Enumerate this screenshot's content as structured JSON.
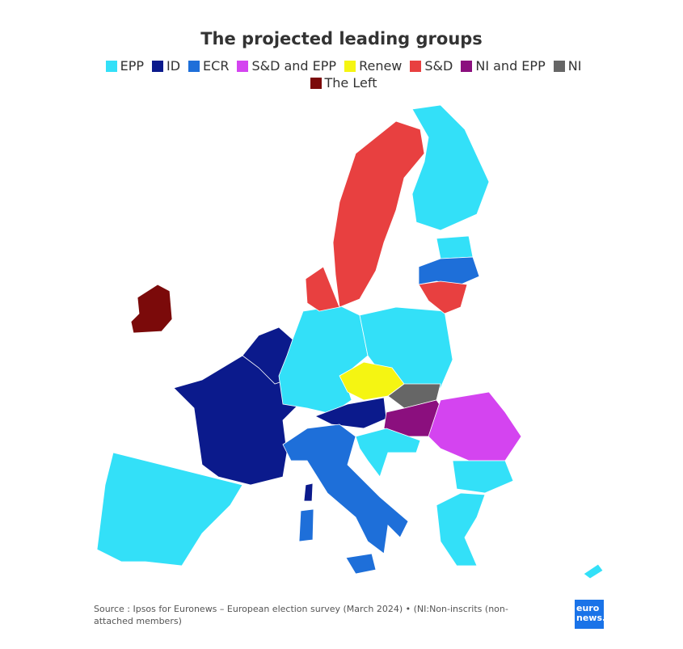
{
  "title": "The projected leading groups",
  "legend": [
    {
      "name": "EPP",
      "color": "#33e0f8"
    },
    {
      "name": "ID",
      "color": "#0b1a8c"
    },
    {
      "name": "ECR",
      "color": "#1e6fd9"
    },
    {
      "name": "S&D and EPP",
      "color": "#d444f0"
    },
    {
      "name": "Renew",
      "color": "#f5f512"
    },
    {
      "name": "S&D",
      "color": "#e84040"
    },
    {
      "name": "NI and EPP",
      "color": "#8b0f7e"
    },
    {
      "name": "NI",
      "color": "#666666"
    },
    {
      "name": "The Left",
      "color": "#7b0a0a"
    }
  ],
  "source": "Source : Ipsos for Euronews – European election survey (March 2024) • (NI:Non-inscrits (non-attached members)",
  "logo": {
    "line1": "euro",
    "line2": "news."
  }
}
